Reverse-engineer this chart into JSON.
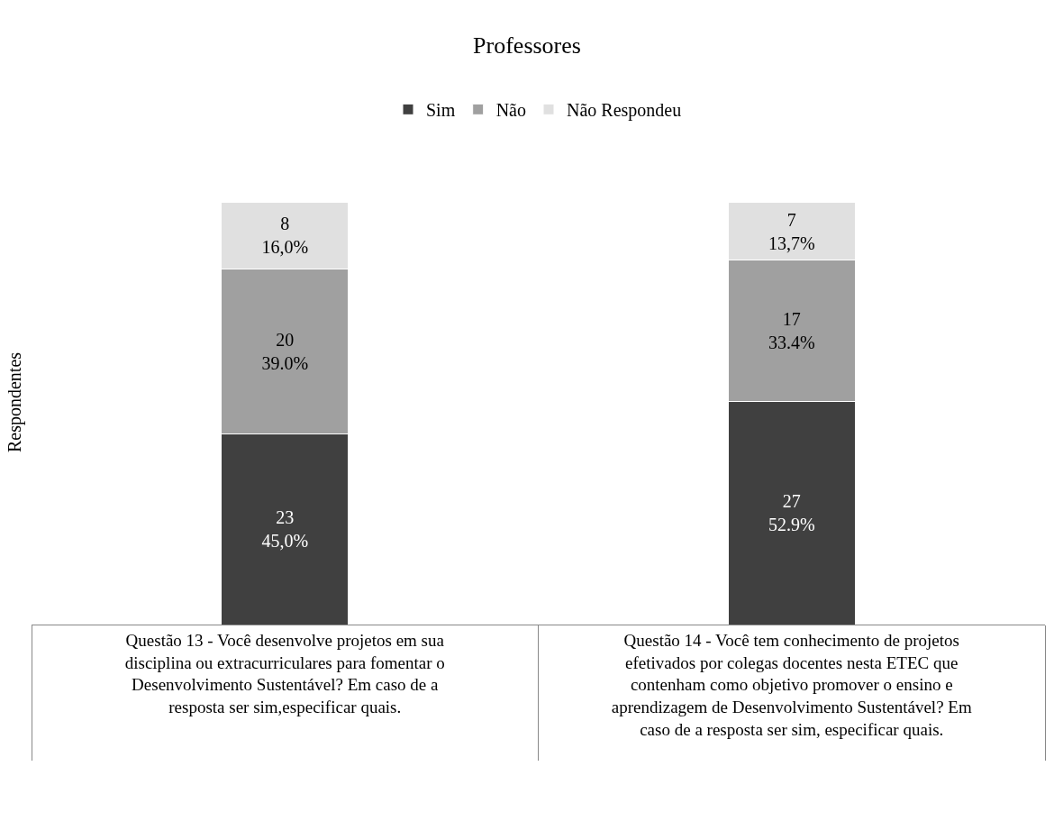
{
  "chart_data": {
    "type": "bar",
    "title": "Professores",
    "ylabel": "Respondentes",
    "stacked": true,
    "legend": "top",
    "grid": false,
    "categories": [
      "Questão 13 - Você desenvolve projetos em sua disciplina ou extracurriculares para fomentar o Desenvolvimento Sustentável? Em caso de a resposta ser sim,especificar quais.",
      "Questão 14 - Você tem conhecimento de projetos efetivados por colegas docentes nesta ETEC que contenham como objetivo promover o ensino e aprendizagem de Desenvolvimento Sustentável? Em caso de a resposta ser sim, especificar quais."
    ],
    "series": [
      {
        "name": "Sim",
        "color": "#404040",
        "values": [
          23,
          27
        ],
        "value_labels": [
          "23\n45,0%",
          "27\n52.9%"
        ]
      },
      {
        "name": "Não",
        "color": "#a0a0a0",
        "values": [
          20,
          17
        ],
        "value_labels": [
          "20\n39.0%",
          "17\n33.4%"
        ]
      },
      {
        "name": "Não Respondeu",
        "color": "#e0e0e0",
        "values": [
          8,
          7
        ],
        "value_labels": [
          "8\n16,0%",
          "7\n13,7%"
        ]
      }
    ]
  }
}
